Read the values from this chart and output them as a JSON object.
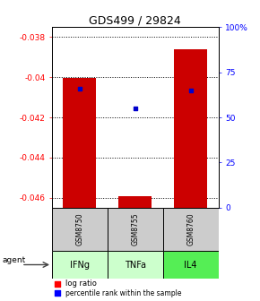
{
  "title": "GDS499 / 29824",
  "samples": [
    "GSM8750",
    "GSM8755",
    "GSM8760"
  ],
  "agents": [
    "IFNg",
    "TNFa",
    "IL4"
  ],
  "log_ratios": [
    -0.04005,
    -0.04593,
    -0.0386
  ],
  "percentile_ranks": [
    66,
    55,
    65
  ],
  "ylim_left": [
    -0.0465,
    -0.0375
  ],
  "ylim_right": [
    0,
    100
  ],
  "yticks_left": [
    -0.046,
    -0.044,
    -0.042,
    -0.04,
    -0.038
  ],
  "ytick_labels_left": [
    "-0.046",
    "-0.044",
    "-0.042",
    "-0.04",
    "-0.038"
  ],
  "yticks_right": [
    0,
    25,
    50,
    75,
    100
  ],
  "ytick_labels_right": [
    "0",
    "25",
    "50",
    "75",
    "100%"
  ],
  "bar_color": "#cc0000",
  "dot_color": "#0000cc",
  "bar_width": 0.6,
  "background_color": "#ffffff",
  "gsm_box_color": "#cccccc",
  "agent_box_colors": [
    "#ccffcc",
    "#ccffcc",
    "#55ee55"
  ]
}
